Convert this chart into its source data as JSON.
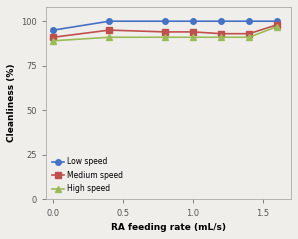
{
  "x": [
    0,
    0.4,
    0.8,
    1.0,
    1.2,
    1.4,
    1.6
  ],
  "low_speed": [
    95,
    100,
    100,
    100,
    100,
    100,
    100
  ],
  "medium_speed": [
    91,
    95,
    94,
    94,
    93,
    93,
    98
  ],
  "high_speed": [
    89,
    91,
    91,
    91,
    91,
    91,
    97
  ],
  "low_color": "#4472c4",
  "medium_color": "#c0504d",
  "high_color": "#9bbb59",
  "xlabel": "RA feeding rate (mL/s)",
  "ylabel": "Cleanliness (%)",
  "xlim": [
    -0.05,
    1.7
  ],
  "ylim": [
    0,
    108
  ],
  "yticks": [
    0,
    25,
    50,
    75,
    100
  ],
  "xticks": [
    0,
    0.5,
    1.0,
    1.5
  ],
  "legend_labels": [
    "Low speed",
    "Medium speed",
    "High speed"
  ],
  "low_marker": "o",
  "medium_marker": "s",
  "high_marker": "^",
  "marker_size": 4,
  "linewidth": 1.2,
  "bg_color": "#f0eeea"
}
